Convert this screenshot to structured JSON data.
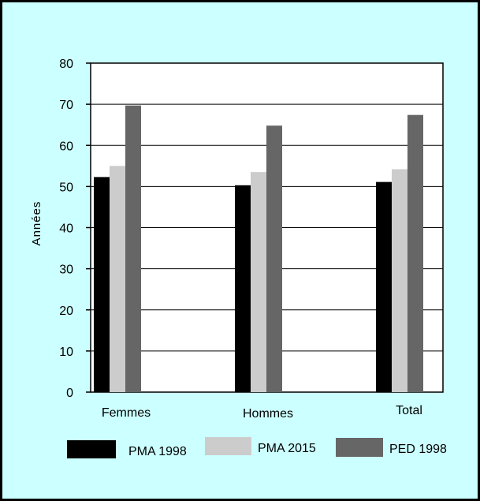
{
  "chart_data": {
    "type": "bar",
    "title": "",
    "xlabel": "",
    "ylabel": "Années",
    "ylim": [
      0,
      80
    ],
    "yticks": [
      0,
      10,
      20,
      30,
      40,
      50,
      60,
      70,
      80
    ],
    "grid": true,
    "legend_position": "bottom",
    "categories": [
      "Femmes",
      "Hommes",
      "Total"
    ],
    "series": [
      {
        "name": "PMA 1998",
        "color": "#000000",
        "values": [
          52.3,
          50.3,
          51.1
        ]
      },
      {
        "name": "PMA 2015",
        "color": "#cccccc",
        "values": [
          55.0,
          53.5,
          54.2
        ]
      },
      {
        "name": "PED 1998",
        "color": "#666666",
        "values": [
          69.7,
          64.8,
          67.4
        ]
      }
    ]
  }
}
